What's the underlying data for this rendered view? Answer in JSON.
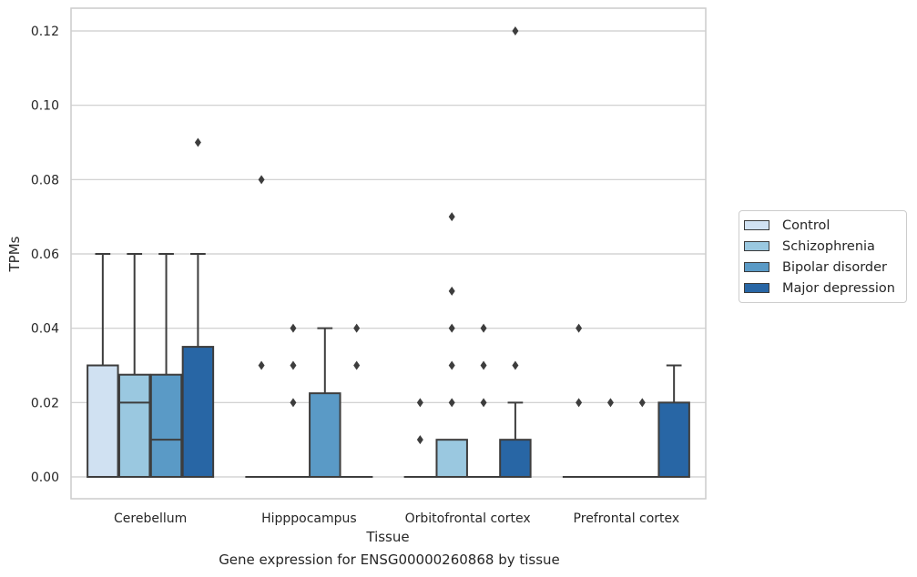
{
  "chart_data": {
    "type": "box",
    "title": "",
    "caption": "Gene expression for ENSG00000260868 by tissue",
    "xlabel": "Tissue",
    "ylabel": "TPMs",
    "ylim": [
      -0.006,
      0.126
    ],
    "yticks": [
      "0.00",
      "0.02",
      "0.04",
      "0.06",
      "0.08",
      "0.10",
      "0.12"
    ],
    "ytick_values": [
      0,
      0.02,
      0.04,
      0.06,
      0.08,
      0.1,
      0.12
    ],
    "grid": "horizontal",
    "legend_position": "right-outside",
    "categories": [
      "Cerebellum",
      "Hipppocampus",
      "Orbitofrontal cortex",
      "Prefrontal cortex"
    ],
    "series": [
      {
        "name": "Control",
        "color": "#d0e1f2",
        "boxes": [
          {
            "min": 0,
            "q1": 0,
            "median": 0,
            "q3": 0.03,
            "max": 0.06,
            "outliers": []
          },
          {
            "min": 0,
            "q1": 0,
            "median": 0,
            "q3": 0,
            "max": 0,
            "outliers": [
              0.03,
              0.08
            ]
          },
          {
            "min": 0,
            "q1": 0,
            "median": 0,
            "q3": 0,
            "max": 0,
            "outliers": [
              0.01,
              0.02
            ]
          },
          {
            "min": 0,
            "q1": 0,
            "median": 0,
            "q3": 0,
            "max": 0,
            "outliers": [
              0.02,
              0.04
            ]
          }
        ]
      },
      {
        "name": "Schizophrenia",
        "color": "#9ac8e0",
        "boxes": [
          {
            "min": 0,
            "q1": 0,
            "median": 0.02,
            "q3": 0.0275,
            "max": 0.06,
            "outliers": []
          },
          {
            "min": 0,
            "q1": 0,
            "median": 0,
            "q3": 0,
            "max": 0,
            "outliers": [
              0.02,
              0.03,
              0.04
            ]
          },
          {
            "min": 0,
            "q1": 0,
            "median": 0,
            "q3": 0.01,
            "max": 0.01,
            "outliers": [
              0.02,
              0.03,
              0.04,
              0.05,
              0.07
            ]
          },
          {
            "min": 0,
            "q1": 0,
            "median": 0,
            "q3": 0,
            "max": 0,
            "outliers": [
              0.02
            ]
          }
        ]
      },
      {
        "name": "Bipolar disorder",
        "color": "#5a9ac6",
        "boxes": [
          {
            "min": 0,
            "q1": 0,
            "median": 0.01,
            "q3": 0.0275,
            "max": 0.06,
            "outliers": []
          },
          {
            "min": 0,
            "q1": 0,
            "median": 0,
            "q3": 0.0225,
            "max": 0.04,
            "outliers": []
          },
          {
            "min": 0,
            "q1": 0,
            "median": 0,
            "q3": 0,
            "max": 0,
            "outliers": [
              0.02,
              0.03,
              0.04
            ]
          },
          {
            "min": 0,
            "q1": 0,
            "median": 0,
            "q3": 0,
            "max": 0,
            "outliers": [
              0.02
            ]
          }
        ]
      },
      {
        "name": "Major depression",
        "color": "#2866a5",
        "boxes": [
          {
            "min": 0,
            "q1": 0,
            "median": 0,
            "q3": 0.035,
            "max": 0.06,
            "outliers": [
              0.09
            ]
          },
          {
            "min": 0,
            "q1": 0,
            "median": 0,
            "q3": 0,
            "max": 0,
            "outliers": [
              0.03,
              0.04
            ]
          },
          {
            "min": 0,
            "q1": 0,
            "median": 0,
            "q3": 0.01,
            "max": 0.02,
            "outliers": [
              0.03,
              0.12
            ]
          },
          {
            "min": 0,
            "q1": 0,
            "median": 0,
            "q3": 0.02,
            "max": 0.03,
            "outliers": []
          }
        ]
      }
    ]
  }
}
